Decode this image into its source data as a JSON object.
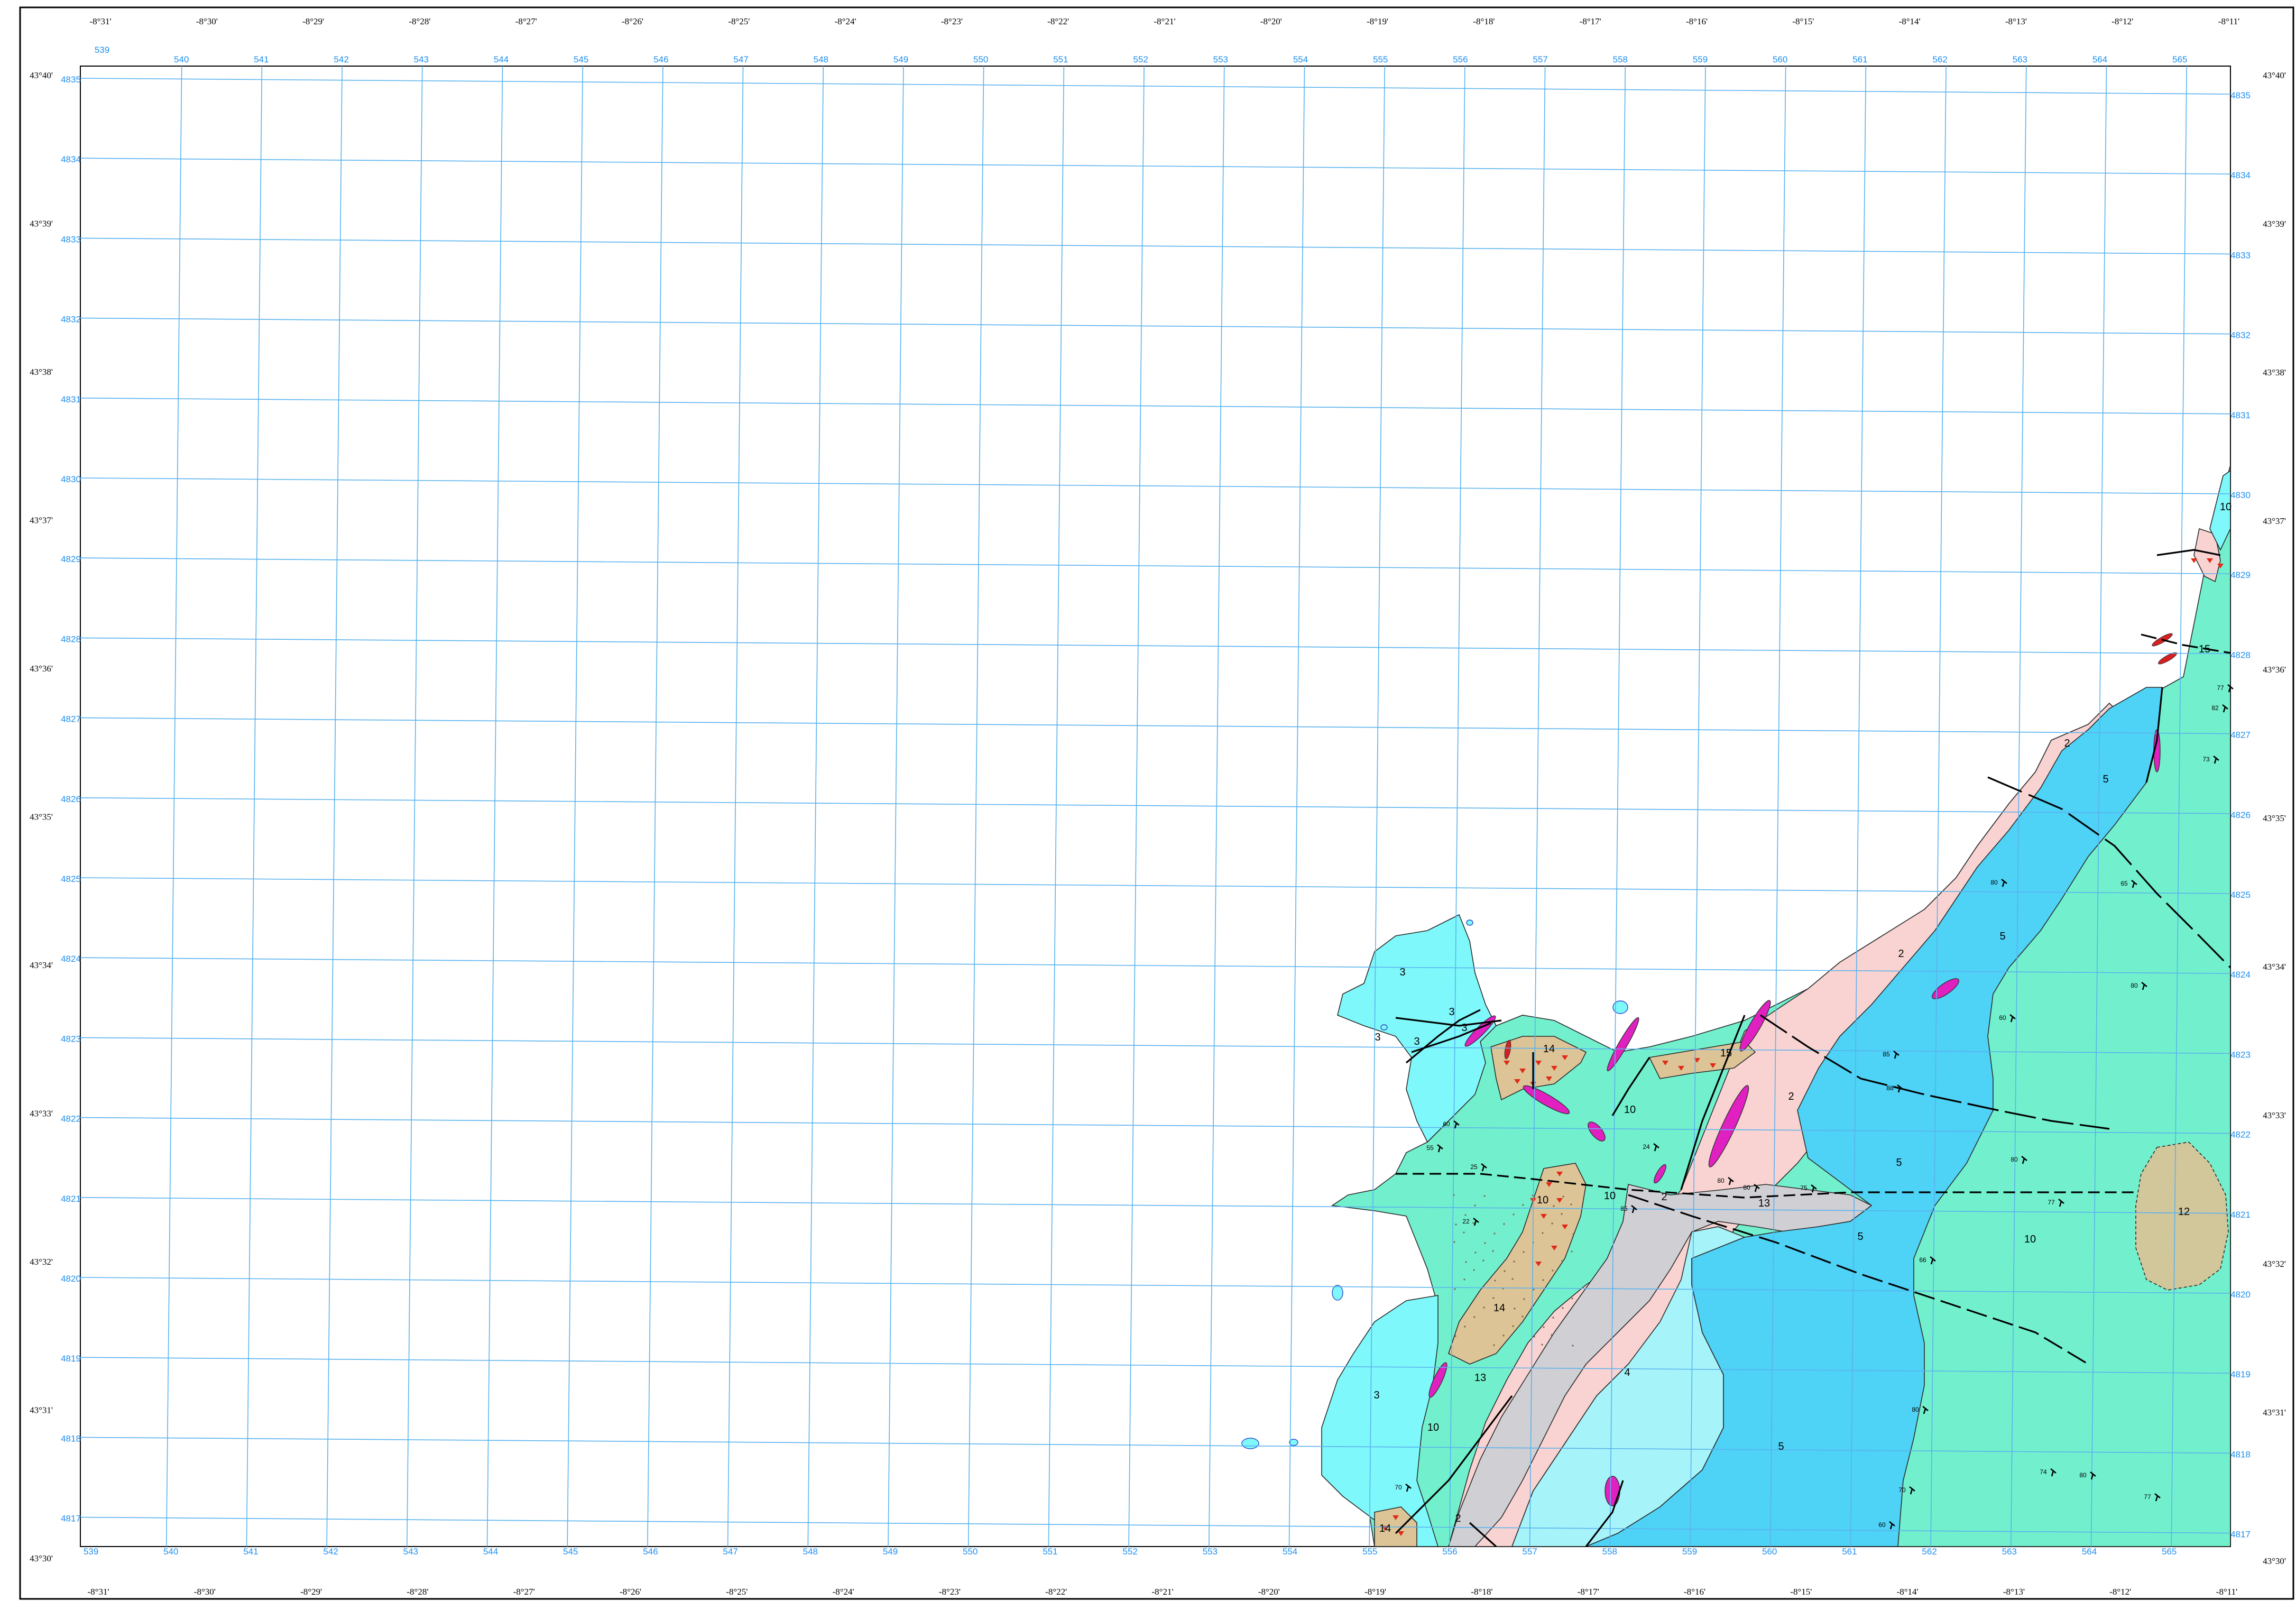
{
  "map": {
    "longitudes": [
      "-8°31'",
      "-8°30'",
      "-8°29'",
      "-8°28'",
      "-8°27'",
      "-8°26'",
      "-8°25'",
      "-8°24'",
      "-8°23'",
      "-8°22'",
      "-8°21'",
      "-8°20'",
      "-8°19'",
      "-8°18'",
      "-8°17'",
      "-8°16'",
      "-8°15'",
      "-8°14'",
      "-8°13'",
      "-8°12'",
      "-8°11'"
    ],
    "latitudes": [
      "43°40'",
      "43°39'",
      "43°38'",
      "43°37'",
      "43°36'",
      "43°35'",
      "43°34'",
      "43°33'",
      "43°32'",
      "43°31'",
      "43°30'"
    ],
    "utm_eastings": [
      "539",
      "540",
      "541",
      "542",
      "543",
      "544",
      "545",
      "546",
      "547",
      "548",
      "549",
      "550",
      "551",
      "552",
      "553",
      "554",
      "555",
      "556",
      "557",
      "558",
      "559",
      "560",
      "561",
      "562",
      "563",
      "564",
      "565"
    ],
    "utm_northings": [
      "4835",
      "4834",
      "4833",
      "4832",
      "4831",
      "4830",
      "4829",
      "4828",
      "4827",
      "4826",
      "4825",
      "4824",
      "4823",
      "4822",
      "4821",
      "4820",
      "4819",
      "4818",
      "4817"
    ],
    "colors": {
      "unit_2": "#f8d3d1",
      "unit_3": "#7ff8fb",
      "unit_4": "#a6f4fa",
      "unit_5": "#4ed2f6",
      "unit_10": "#72f0cd",
      "unit_12": "#d2c69b",
      "unit_13": "#cfcfd4",
      "unit_14": "#ddc496",
      "dike": "#e020c0",
      "grid": "#5ab2ee",
      "fault": "#000000"
    },
    "unit_labels": [
      {
        "id": "u3a",
        "text": "3"
      },
      {
        "id": "u3b",
        "text": "3"
      },
      {
        "id": "u3c",
        "text": "3"
      },
      {
        "id": "u3d",
        "text": "3"
      },
      {
        "id": "u3e",
        "text": "3"
      },
      {
        "id": "u3f",
        "text": "3"
      },
      {
        "id": "u2a",
        "text": "2"
      },
      {
        "id": "u2b",
        "text": "2"
      },
      {
        "id": "u2c",
        "text": "2"
      },
      {
        "id": "u2d",
        "text": "2"
      },
      {
        "id": "u2e",
        "text": "2"
      },
      {
        "id": "u5a",
        "text": "5"
      },
      {
        "id": "u5b",
        "text": "5"
      },
      {
        "id": "u5c",
        "text": "5"
      },
      {
        "id": "u5d",
        "text": "5"
      },
      {
        "id": "u5e",
        "text": "5"
      },
      {
        "id": "u4a",
        "text": "4"
      },
      {
        "id": "u10a",
        "text": "10"
      },
      {
        "id": "u10b",
        "text": "10"
      },
      {
        "id": "u10c",
        "text": "10"
      },
      {
        "id": "u10d",
        "text": "10"
      },
      {
        "id": "u10e",
        "text": "10"
      },
      {
        "id": "u10f",
        "text": "10"
      },
      {
        "id": "u12a",
        "text": "12"
      },
      {
        "id": "u13a",
        "text": "13"
      },
      {
        "id": "u13b",
        "text": "13"
      },
      {
        "id": "u14a",
        "text": "14"
      },
      {
        "id": "u14b",
        "text": "14"
      },
      {
        "id": "u14c",
        "text": "14"
      },
      {
        "id": "u15a",
        "text": "15"
      },
      {
        "id": "u15b",
        "text": "15"
      }
    ],
    "dip_labels": [
      "77",
      "82",
      "80",
      "65",
      "60",
      "85",
      "88",
      "66",
      "80",
      "80",
      "75",
      "77",
      "80",
      "55",
      "60",
      "24",
      "80",
      "85",
      "25",
      "22",
      "70",
      "73",
      "74",
      "80",
      "77",
      "70",
      "60",
      "80"
    ]
  }
}
